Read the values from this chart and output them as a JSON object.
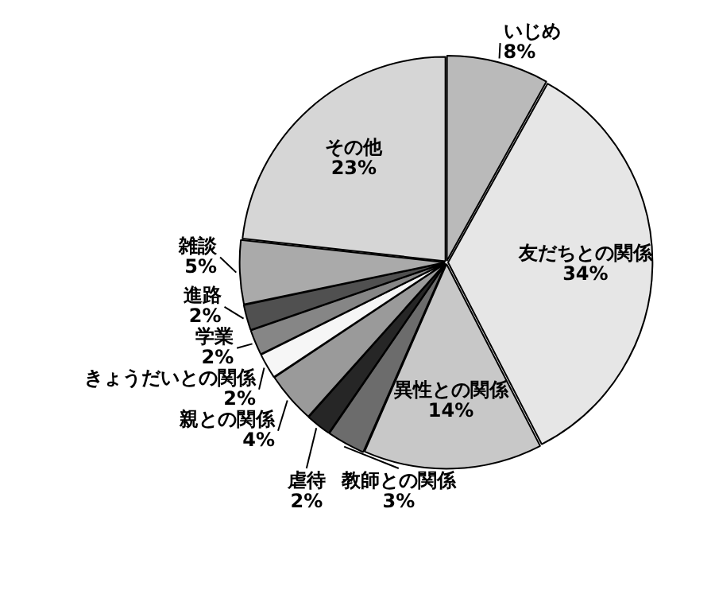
{
  "chart_data": {
    "type": "pie",
    "categories": [
      "いじめ",
      "友だちとの関係",
      "異性との関係",
      "教師との関係",
      "虐待",
      "親との関係",
      "きょうだいとの関係",
      "学業",
      "進路",
      "雑談",
      "その他"
    ],
    "values": [
      8,
      34,
      14,
      3,
      2,
      4,
      2,
      2,
      2,
      5,
      23
    ],
    "value_labels": [
      "8%",
      "34%",
      "14%",
      "3%",
      "2%",
      "4%",
      "2%",
      "2%",
      "2%",
      "5%",
      "23%"
    ],
    "colors": [
      "#bababa",
      "#e6e6e6",
      "#c8c8c8",
      "#6c6c6c",
      "#262626",
      "#9a9a9a",
      "#f6f6f6",
      "#868686",
      "#505050",
      "#aaaaaa",
      "#d6d6d6"
    ],
    "legend": false
  }
}
